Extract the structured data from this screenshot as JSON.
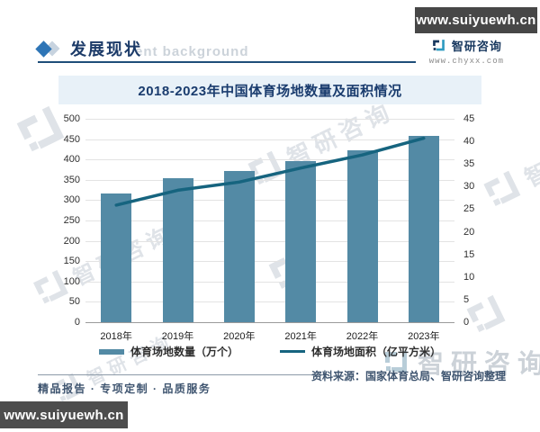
{
  "banners": {
    "top_right": "www.suiyuewh.cn",
    "bottom_left": "www.suiyuewh.cn"
  },
  "header": {
    "section_title": "发展现状",
    "background_watermark": "ent background",
    "brand": {
      "name": "智研咨询",
      "site": "www.chyxx.com"
    }
  },
  "chart_title": "2018-2023年中国体育场地数量及面积情况",
  "chart_data": {
    "type": "bar",
    "title": "2018-2023年中国体育场地数量及面积情况",
    "categories": [
      "2018年",
      "2019年",
      "2020年",
      "2021年",
      "2022年",
      "2023年"
    ],
    "series": [
      {
        "name": "体育场地数量（万个）",
        "type": "bar",
        "axis": "left",
        "color": "#538aa5",
        "values": [
          316,
          354,
          371,
          397,
          423,
          459
        ]
      },
      {
        "name": "体育场地面积（亿平方米）",
        "type": "line",
        "axis": "right",
        "color": "#16647f",
        "values": [
          25.9,
          29.2,
          31.0,
          34.1,
          37.0,
          40.7
        ]
      }
    ],
    "left_axis": {
      "min": 0,
      "max": 500,
      "step": 50,
      "ticks": [
        0,
        50,
        100,
        150,
        200,
        250,
        300,
        350,
        400,
        450,
        500
      ]
    },
    "right_axis": {
      "min": 0,
      "max": 45,
      "step": 5,
      "ticks": [
        0,
        5,
        10,
        15,
        20,
        25,
        30,
        35,
        40,
        45
      ]
    },
    "grid": true,
    "legend_position": "bottom"
  },
  "footer": {
    "tagline": "精品报告 · 专项定制 · 品质服务",
    "source": "资料来源：国家体育总局、智研咨询整理"
  },
  "watermark_brand": "智研咨询",
  "colors": {
    "accent": "#1f4e79",
    "bar": "#538aa5",
    "line": "#16647f",
    "title_background": "#e8f1f8",
    "banner_background": "#474747"
  }
}
